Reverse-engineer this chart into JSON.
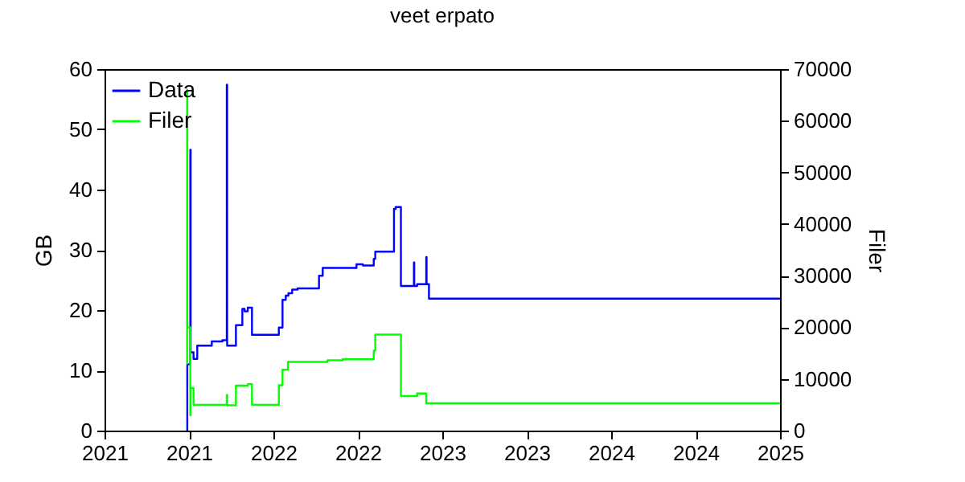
{
  "chart_data": {
    "type": "step",
    "title": "veet erpato",
    "ylabel": "GB",
    "y2label": "Filer",
    "xlim": [
      2021,
      2025
    ],
    "xticks": [
      {
        "value": 2021,
        "label": "2021"
      },
      {
        "value": 2021.5,
        "label": "2021"
      },
      {
        "value": 2022,
        "label": "2022"
      },
      {
        "value": 2022.5,
        "label": "2022"
      },
      {
        "value": 2023,
        "label": "2023"
      },
      {
        "value": 2023.5,
        "label": "2023"
      },
      {
        "value": 2024,
        "label": "2024"
      },
      {
        "value": 2024.5,
        "label": "2024"
      },
      {
        "value": 2025,
        "label": "2025"
      }
    ],
    "ylim": [
      0,
      60
    ],
    "yticks": [
      0,
      10,
      20,
      30,
      40,
      50,
      60
    ],
    "y2lim": [
      0,
      70000
    ],
    "y2ticks": [
      0,
      10000,
      20000,
      30000,
      40000,
      50000,
      60000,
      70000
    ],
    "legend": "top left",
    "grid": false,
    "marker": "none",
    "series": [
      {
        "name": "Data",
        "color": "#0000ff",
        "axis": "y",
        "x": [
          2021.489,
          2021.49,
          2021.508,
          2021.51,
          2021.527,
          2021.549,
          2021.635,
          2021.698,
          2021.724,
          2021.726,
          2021.778,
          2021.816,
          2021.829,
          2021.848,
          2021.873,
          2022.032,
          2022.054,
          2022.073,
          2022.089,
          2022.111,
          2022.143,
          2022.27,
          2022.292,
          2022.492,
          2022.53,
          2022.594,
          2022.603,
          2022.714,
          2022.724,
          2022.755,
          2022.832,
          2022.834,
          2022.851,
          2022.905,
          2022.907,
          2022.921,
          2025
        ],
        "values": [
          0,
          11,
          46.6,
          13,
          11.9,
          14.1,
          14.8,
          15,
          57.4,
          14.1,
          17.5,
          20.2,
          19.8,
          20.4,
          15.9,
          17.1,
          21.7,
          22.4,
          22.8,
          23.4,
          23.6,
          25.7,
          27,
          27.6,
          27.4,
          28.5,
          29.7,
          36.8,
          37.1,
          24,
          27.9,
          24,
          24.3,
          28.8,
          24.3,
          21.9,
          21.9
        ]
      },
      {
        "name": "Filer",
        "color": "#00ff00",
        "axis": "y2",
        "x": [
          2021.487,
          2021.489,
          2021.49,
          2021.508,
          2021.51,
          2021.527,
          2021.724,
          2021.726,
          2021.778,
          2021.848,
          2021.873,
          2022.032,
          2022.054,
          2022.086,
          2022.32,
          2022.41,
          2022.594,
          2022.603,
          2022.755,
          2022.851,
          2022.905,
          2025
        ],
        "values": [
          13000,
          66000,
          20000,
          3000,
          8200,
          5000,
          6900,
          4900,
          8700,
          9000,
          5000,
          8800,
          11800,
          13300,
          13600,
          13800,
          15500,
          18600,
          6700,
          7200,
          5300,
          5300
        ]
      }
    ]
  }
}
